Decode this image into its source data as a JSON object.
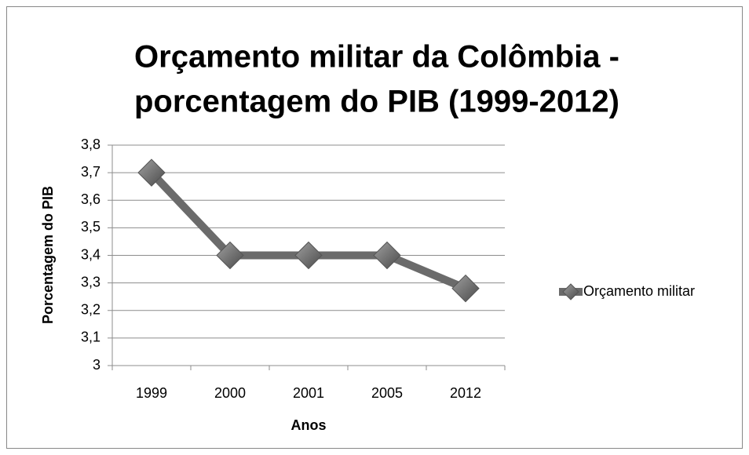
{
  "chart_data": {
    "type": "line",
    "title": [
      "Orçamento militar da Colômbia -",
      "porcentagem do PIB (1999-2012)"
    ],
    "x_label": "Anos",
    "y_label": "Porcentagem do PIB",
    "categories": [
      "1999",
      "2000",
      "2001",
      "2005",
      "2012"
    ],
    "series": [
      {
        "name": "Orçamento militar",
        "color": "#6b6b6b",
        "values": [
          3.7,
          3.4,
          3.4,
          3.4,
          3.28
        ]
      }
    ],
    "ylim": [
      3,
      3.8
    ],
    "yticks": [
      3,
      {
        "value": 3.1,
        "label": "3,1"
      },
      {
        "value": 3.2,
        "label": "3,2"
      },
      {
        "value": 3.3,
        "label": "3,3"
      },
      {
        "value": 3.4,
        "label": "3,4"
      },
      {
        "value": 3.5,
        "label": "3,5"
      },
      {
        "value": 3.6,
        "label": "3,6"
      },
      {
        "value": 3.7,
        "label": "3,7"
      },
      {
        "value": 3.8,
        "label": "3,8"
      }
    ],
    "grid": true,
    "legend": "right"
  }
}
